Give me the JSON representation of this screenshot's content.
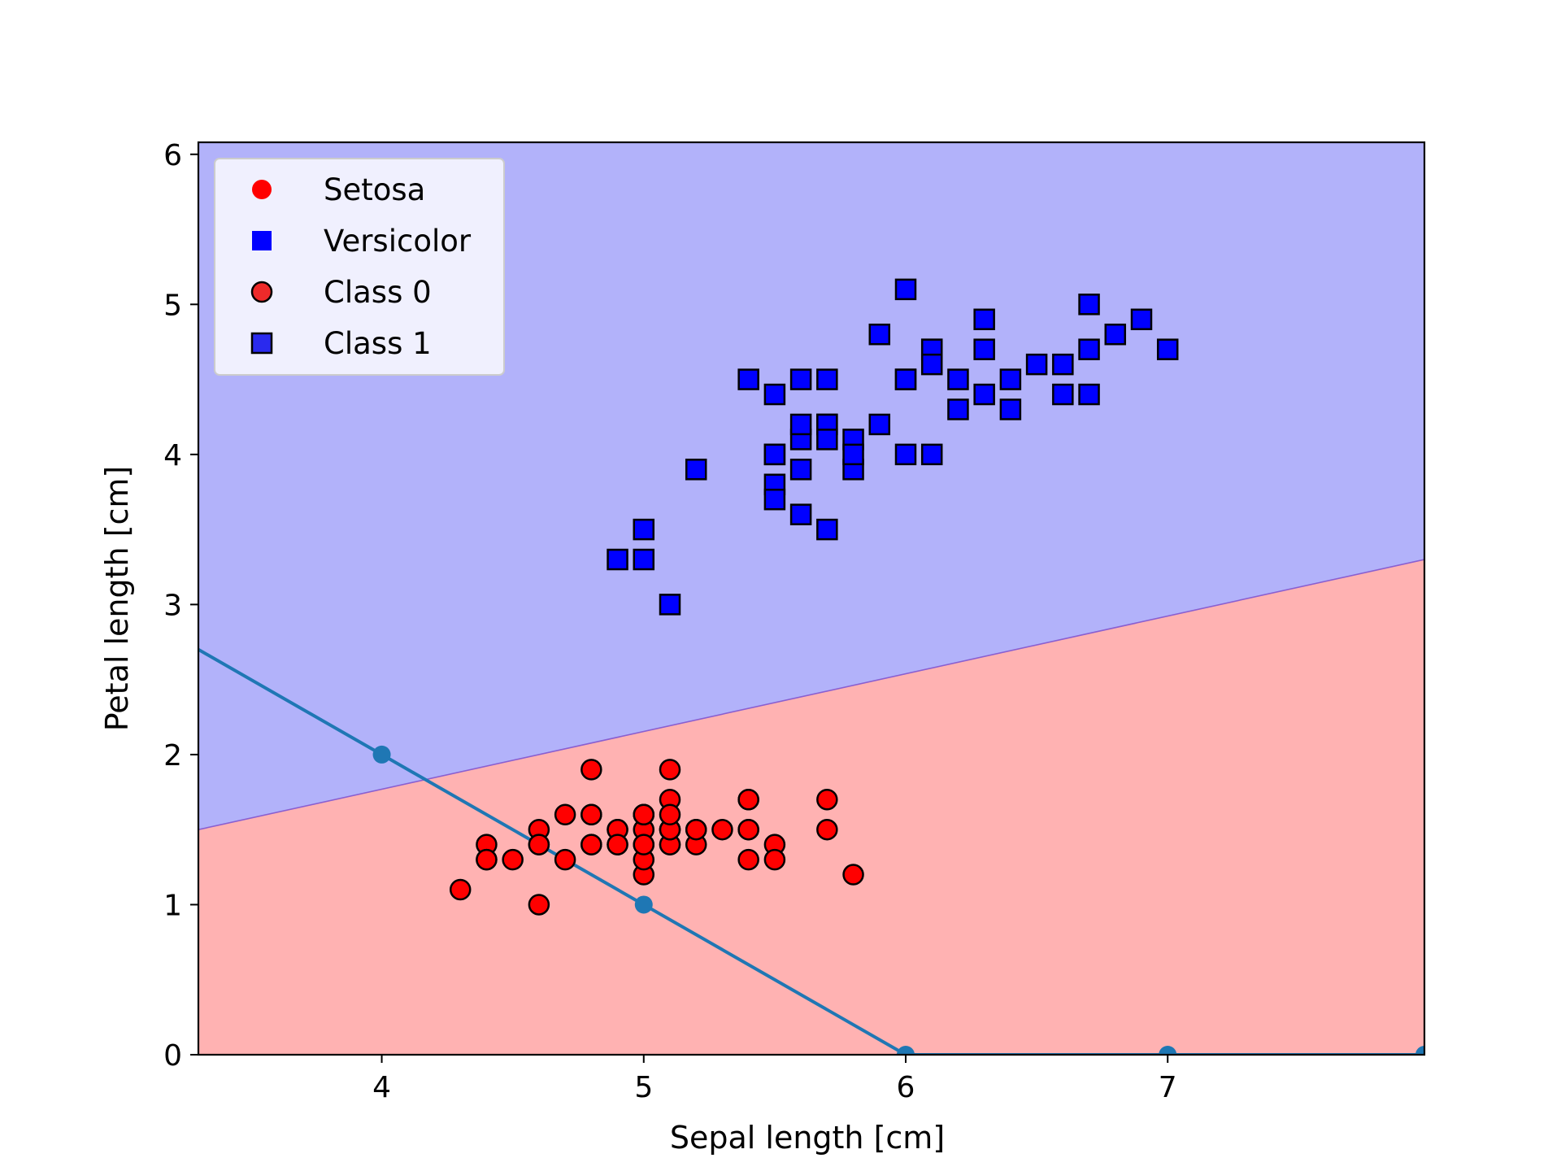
{
  "chart_data": {
    "type": "scatter",
    "title": "",
    "xlabel": "Sepal length [cm]",
    "ylabel": "Petal length [cm]",
    "xlim": [
      3.3,
      7.98
    ],
    "ylim": [
      0,
      6.08
    ],
    "xticks": [
      4,
      5,
      6,
      7
    ],
    "yticks": [
      0,
      1,
      2,
      3,
      4,
      5,
      6
    ],
    "grid": false,
    "legend_position": "top-left",
    "decision_regions": {
      "boundary": {
        "x": [
          3.3,
          7.98
        ],
        "y": [
          1.5,
          3.3
        ]
      },
      "below_label": "Setosa",
      "above_label": "Versicolor",
      "below_color": "#ffb2b2",
      "above_color": "#b2b2fa",
      "boundary_color": "#8a5fd0"
    },
    "legend": [
      {
        "label": "Setosa",
        "marker": "circle",
        "color": "#ff0000",
        "edge": "none"
      },
      {
        "label": "Versicolor",
        "marker": "square",
        "color": "#0000ff",
        "edge": "none"
      },
      {
        "label": "Class 0",
        "marker": "circle",
        "color": "#ee2a2a",
        "edge": "#000000"
      },
      {
        "label": "Class 1",
        "marker": "square",
        "color": "#2a2aee",
        "edge": "#000000"
      }
    ],
    "series": [
      {
        "name": "Class 0",
        "marker": "circle",
        "color": "#ff0000",
        "edge": "#000000",
        "x": [
          5.1,
          4.9,
          4.7,
          4.6,
          5.0,
          5.4,
          4.6,
          5.0,
          4.4,
          4.9,
          5.4,
          4.8,
          4.8,
          4.3,
          5.8,
          5.7,
          5.4,
          5.1,
          5.7,
          5.1,
          5.4,
          5.1,
          4.6,
          5.1,
          4.8,
          5.0,
          5.0,
          5.2,
          5.2,
          4.7,
          4.8,
          5.4,
          5.2,
          5.5,
          4.9,
          5.0,
          5.5,
          4.9,
          4.4,
          5.1,
          5.0,
          4.5,
          4.4,
          5.0,
          5.1,
          4.8,
          5.1,
          4.6,
          5.3,
          5.0
        ],
        "y": [
          1.4,
          1.4,
          1.3,
          1.5,
          1.4,
          1.7,
          1.4,
          1.5,
          1.4,
          1.5,
          1.5,
          1.6,
          1.4,
          1.1,
          1.2,
          1.5,
          1.3,
          1.4,
          1.7,
          1.5,
          1.7,
          1.5,
          1.0,
          1.7,
          1.9,
          1.6,
          1.6,
          1.5,
          1.4,
          1.6,
          1.6,
          1.5,
          1.5,
          1.4,
          1.5,
          1.2,
          1.3,
          1.4,
          1.3,
          1.5,
          1.3,
          1.3,
          1.3,
          1.6,
          1.9,
          1.4,
          1.6,
          1.4,
          1.5,
          1.4
        ]
      },
      {
        "name": "Class 1",
        "marker": "square",
        "color": "#0000ff",
        "edge": "#000000",
        "x": [
          7.0,
          6.4,
          6.9,
          5.5,
          6.5,
          5.7,
          6.3,
          4.9,
          6.6,
          5.2,
          5.0,
          5.9,
          6.0,
          6.1,
          5.6,
          6.7,
          5.6,
          5.8,
          6.2,
          5.6,
          5.9,
          6.1,
          6.3,
          6.1,
          6.4,
          6.6,
          6.8,
          6.7,
          6.0,
          5.7,
          5.5,
          5.5,
          5.8,
          6.0,
          5.4,
          6.0,
          6.7,
          6.3,
          5.6,
          5.5,
          5.5,
          6.1,
          5.8,
          5.0,
          5.6,
          5.7,
          5.7,
          6.2,
          5.1,
          5.7
        ],
        "y": [
          4.7,
          4.5,
          4.9,
          4.0,
          4.6,
          4.5,
          4.7,
          3.3,
          4.6,
          3.9,
          3.5,
          4.2,
          4.0,
          4.7,
          3.6,
          4.4,
          4.5,
          4.1,
          4.5,
          3.9,
          4.8,
          4.0,
          4.9,
          4.7,
          4.3,
          4.4,
          4.8,
          5.0,
          4.5,
          3.5,
          3.8,
          3.7,
          3.9,
          5.1,
          4.5,
          4.5,
          4.7,
          4.4,
          4.1,
          4.0,
          4.4,
          4.6,
          4.0,
          3.3,
          4.2,
          4.2,
          4.2,
          4.3,
          3.0,
          4.1
        ]
      },
      {
        "name": "",
        "marker": "line",
        "color": "#1f77b4",
        "x": [
          3.3,
          4,
          5,
          6,
          7,
          7.98
        ],
        "y": [
          2.7,
          2,
          1,
          0,
          0,
          0
        ],
        "point_x": [
          4,
          5,
          6,
          7,
          7.98
        ],
        "point_y": [
          2,
          1,
          0,
          0,
          0
        ]
      }
    ]
  }
}
